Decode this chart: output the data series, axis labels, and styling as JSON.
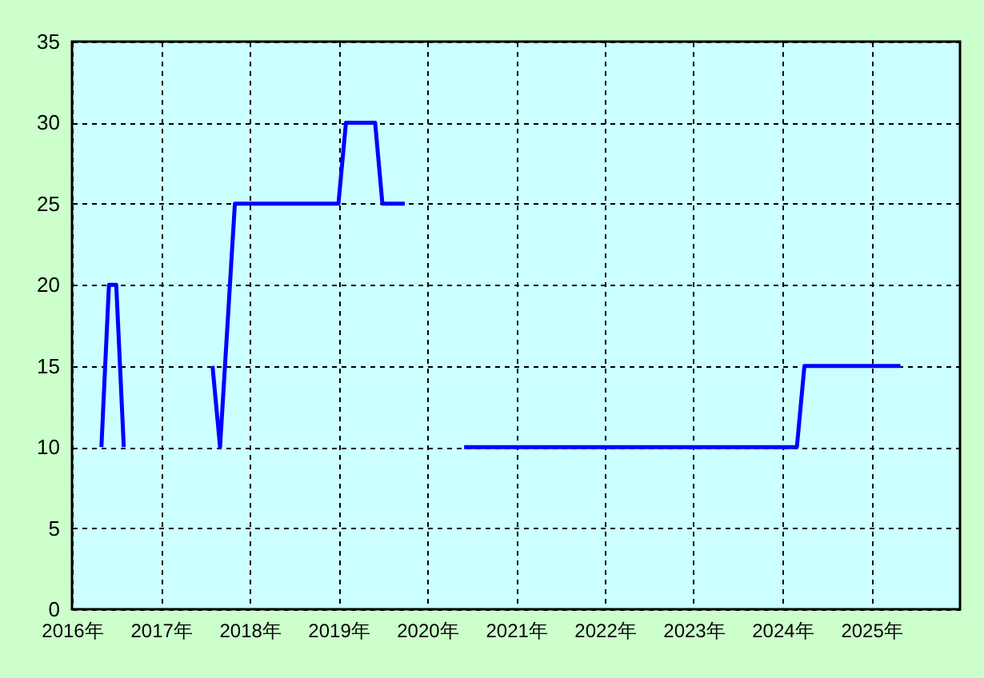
{
  "chart_data": {
    "type": "line",
    "x": [
      "2016-05",
      "2016-06",
      "2016-07",
      "2016-08",
      "2017-01",
      "2017-08",
      "2017-09",
      "2017-11",
      "2019-01",
      "2019-02",
      "2019-06",
      "2019-07",
      "2019-10",
      "2020-01",
      "2020-06",
      "2024-03",
      "2024-04",
      "2025-05"
    ],
    "series": [
      {
        "color": "#0000ff",
        "values": [
          10,
          20,
          20,
          10,
          null,
          15,
          10,
          25,
          25,
          30,
          30,
          25,
          25,
          null,
          10,
          10,
          15,
          15
        ]
      }
    ],
    "xlim": [
      "2016-01",
      "2026-01"
    ],
    "xticks": [
      {
        "value": "2016-01",
        "label": "2016年"
      },
      {
        "value": "2017-01",
        "label": "2017年"
      },
      {
        "value": "2018-01",
        "label": "2018年"
      },
      {
        "value": "2019-01",
        "label": "2019年"
      },
      {
        "value": "2020-01",
        "label": "2020年"
      },
      {
        "value": "2021-01",
        "label": "2021年"
      },
      {
        "value": "2022-01",
        "label": "2022年"
      },
      {
        "value": "2023-01",
        "label": "2023年"
      },
      {
        "value": "2024-01",
        "label": "2024年"
      },
      {
        "value": "2025-01",
        "label": "2025年"
      }
    ],
    "ylim": [
      0,
      35
    ],
    "yticks": [
      0,
      5,
      10,
      15,
      20,
      25,
      30,
      35
    ],
    "grid": true,
    "marker": "none",
    "line_style": "solid"
  }
}
